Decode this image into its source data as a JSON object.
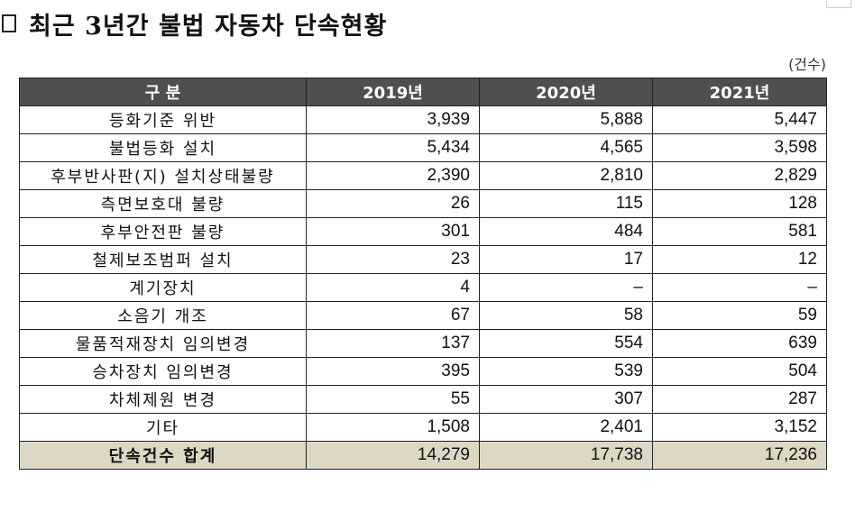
{
  "title": "최근 3년간 불법 자동차 단속현황",
  "unit": "(건수)",
  "table": {
    "headers": [
      "구  분",
      "2019년",
      "2020년",
      "2021년"
    ],
    "rows": [
      [
        "등화기준 위반",
        "3,939",
        "5,888",
        "5,447"
      ],
      [
        "불법등화 설치",
        "5,434",
        "4,565",
        "3,598"
      ],
      [
        "후부반사판(지) 설치상태불량",
        "2,390",
        "2,810",
        "2,829"
      ],
      [
        "측면보호대 불량",
        "26",
        "115",
        "128"
      ],
      [
        "후부안전판 불량",
        "301",
        "484",
        "581"
      ],
      [
        "철제보조범퍼 설치",
        "23",
        "17",
        "12"
      ],
      [
        "계기장치",
        "4",
        "–",
        "–"
      ],
      [
        "소음기 개조",
        "67",
        "58",
        "59"
      ],
      [
        "물품적재장치 임의변경",
        "137",
        "554",
        "639"
      ],
      [
        "승차장치 임의변경",
        "395",
        "539",
        "504"
      ],
      [
        "차체제원 변경",
        "55",
        "307",
        "287"
      ],
      [
        "기타",
        "1,508",
        "2,401",
        "3,152"
      ]
    ],
    "total": [
      "단속건수 합계",
      "14,279",
      "17,738",
      "17,236"
    ]
  }
}
